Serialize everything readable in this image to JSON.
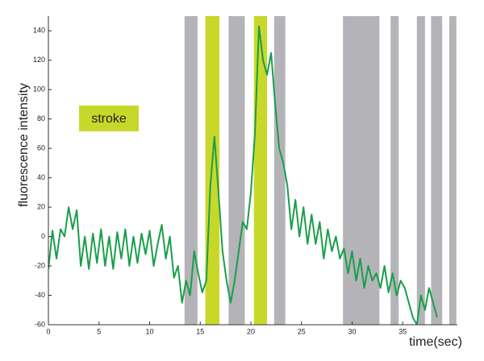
{
  "chart_data": {
    "type": "line",
    "x_label": "time(sec)",
    "y_label": "fluorescence intensity",
    "xlim": [
      0,
      40.4
    ],
    "xticks": [
      0,
      5,
      10,
      15,
      20,
      25,
      30,
      35
    ],
    "ylim": [
      -60,
      150
    ],
    "yticks": [
      -60,
      -40,
      -20,
      0,
      20,
      40,
      60,
      80,
      100,
      120,
      140
    ],
    "legend": {
      "label": "stroke",
      "color": "#c8d82a"
    },
    "regions": [
      {
        "start": 13.45,
        "end": 14.73,
        "color": "#b4b4b8"
      },
      {
        "start": 15.5,
        "end": 16.9,
        "color": "#c8d82a"
      },
      {
        "start": 17.8,
        "end": 19.4,
        "color": "#b4b4b8"
      },
      {
        "start": 20.3,
        "end": 21.6,
        "color": "#c8d82a"
      },
      {
        "start": 22.3,
        "end": 23.4,
        "color": "#b4b4b8"
      },
      {
        "start": 29.1,
        "end": 32.7,
        "color": "#b4b4b8"
      },
      {
        "start": 33.8,
        "end": 34.6,
        "color": "#b4b4b8"
      },
      {
        "start": 36.4,
        "end": 37.2,
        "color": "#b4b4b8"
      },
      {
        "start": 37.8,
        "end": 38.9,
        "color": "#b4b4b8"
      },
      {
        "start": 39.6,
        "end": 40.3,
        "color": "#b4b4b8"
      }
    ],
    "x": [
      0,
      0.4,
      0.8,
      1.2,
      1.6,
      2,
      2.4,
      2.8,
      3.2,
      3.6,
      4,
      4.4,
      4.8,
      5.2,
      5.6,
      6,
      6.4,
      6.8,
      7.2,
      7.6,
      8,
      8.4,
      8.8,
      9.2,
      9.6,
      10,
      10.4,
      10.8,
      11.2,
      11.6,
      12,
      12.4,
      12.8,
      13.2,
      13.6,
      14,
      14.4,
      14.8,
      15.2,
      15.6,
      16,
      16.4,
      16.8,
      17.2,
      17.6,
      18,
      18.4,
      18.8,
      19.2,
      19.6,
      20,
      20.4,
      20.8,
      21.2,
      21.6,
      22,
      22.4,
      22.8,
      23.2,
      23.6,
      24,
      24.4,
      24.8,
      25.2,
      25.6,
      26,
      26.4,
      26.8,
      27.2,
      27.6,
      28,
      28.4,
      28.8,
      29.2,
      29.6,
      30,
      30.4,
      30.8,
      31.2,
      31.6,
      32,
      32.4,
      32.8,
      33.2,
      33.6,
      34,
      34.4,
      34.8,
      35.2,
      35.6,
      36,
      36.4,
      36.8,
      37.2,
      37.6,
      38,
      38.4
    ],
    "series": [
      {
        "color": "#1a9e4a",
        "values": [
          -22,
          4,
          -15,
          5,
          0,
          20,
          5,
          18,
          -20,
          0,
          -22,
          2,
          -18,
          5,
          -20,
          0,
          -22,
          3,
          -15,
          5,
          -20,
          0,
          -18,
          2,
          -12,
          4,
          -20,
          -5,
          8,
          -15,
          0,
          -28,
          -20,
          -45,
          -30,
          -40,
          -10,
          -25,
          -38,
          -30,
          35,
          68,
          30,
          -10,
          -30,
          -45,
          -30,
          -10,
          10,
          5,
          30,
          70,
          143,
          120,
          110,
          125,
          90,
          60,
          50,
          35,
          5,
          25,
          0,
          20,
          -5,
          15,
          -5,
          10,
          -15,
          5,
          -10,
          0,
          -15,
          -8,
          -25,
          -10,
          -30,
          -15,
          -35,
          -20,
          -30,
          -25,
          -35,
          -20,
          -38,
          -25,
          -40,
          -30,
          -35,
          -45,
          -55,
          -60,
          -40,
          -50,
          -35,
          -45,
          -55
        ]
      }
    ]
  }
}
